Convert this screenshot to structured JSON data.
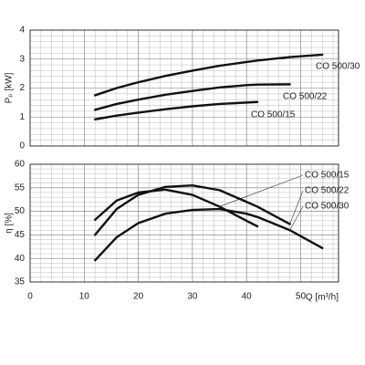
{
  "chart_data": [
    {
      "type": "line",
      "ylabel": "Pₚ [kW]",
      "x": [
        12,
        16,
        20,
        25,
        30,
        35,
        40,
        42,
        48,
        54
      ],
      "xlim": [
        0,
        57
      ],
      "xticks": [
        0,
        10,
        20,
        30,
        40,
        50
      ],
      "ylim": [
        0,
        4
      ],
      "yticks": [
        0,
        1,
        2,
        3,
        4
      ],
      "grid": true,
      "series": [
        {
          "name": "CO 500/30",
          "color": "#111111",
          "values": [
            1.75,
            2.0,
            2.2,
            2.42,
            2.6,
            2.77,
            2.9,
            2.95,
            3.07,
            3.15
          ]
        },
        {
          "name": "CO 500/22",
          "color": "#111111",
          "values": [
            1.25,
            1.45,
            1.6,
            1.77,
            1.9,
            2.02,
            2.1,
            2.12,
            2.13,
            null
          ]
        },
        {
          "name": "CO 500/15",
          "color": "#111111",
          "values": [
            0.92,
            1.05,
            1.15,
            1.27,
            1.37,
            1.45,
            1.5,
            1.52,
            null,
            null
          ]
        }
      ]
    },
    {
      "type": "line",
      "ylabel": "η [%]",
      "xlabel": "Q [m³/h]",
      "x": [
        12,
        16,
        20,
        25,
        30,
        35,
        40,
        42,
        48,
        54
      ],
      "xlim": [
        0,
        57
      ],
      "xticks": [
        0,
        10,
        20,
        30,
        40,
        50
      ],
      "ylim": [
        35,
        60
      ],
      "yticks": [
        35,
        40,
        45,
        50,
        55,
        60
      ],
      "grid": true,
      "series": [
        {
          "name": "CO 500/15",
          "color": "#111111",
          "values": [
            48.2,
            52.3,
            54,
            54.6,
            53.5,
            51,
            48,
            46.8,
            null,
            null
          ]
        },
        {
          "name": "CO 500/22",
          "color": "#111111",
          "values": [
            45,
            50.5,
            53.5,
            55.2,
            55.5,
            54.5,
            52,
            51,
            47.3,
            null
          ]
        },
        {
          "name": "CO 500/30",
          "color": "#111111",
          "values": [
            39.6,
            44.5,
            47.5,
            49.5,
            50.3,
            50.5,
            49.5,
            48.8,
            46,
            42.2
          ]
        }
      ]
    }
  ]
}
